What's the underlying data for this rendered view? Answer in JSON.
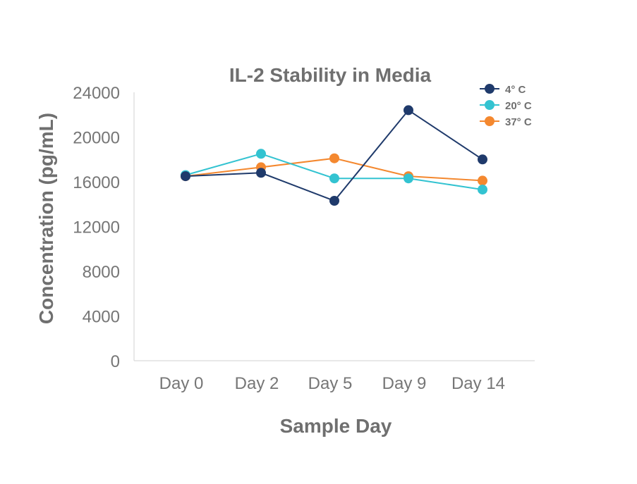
{
  "chart_data": {
    "type": "line",
    "title": "IL-2 Stability in Media",
    "xlabel": "Sample Day",
    "ylabel": "Concentration (pg/mL)",
    "categories": [
      "Day 0",
      "Day 2",
      "Day 5",
      "Day 9",
      "Day 14"
    ],
    "ylim": [
      0,
      24000
    ],
    "yticks": [
      "24000",
      "20000",
      "16000",
      "12000",
      "8000",
      "4000",
      "0"
    ],
    "ytick_values": [
      24000,
      20000,
      16000,
      12000,
      8000,
      4000,
      0
    ],
    "grid": false,
    "legend_position": "top-right",
    "series": [
      {
        "name": "4° C",
        "color": "#1f3a6b",
        "values": [
          16500,
          16800,
          14300,
          22400,
          18000
        ]
      },
      {
        "name": "20° C",
        "color": "#33c3d1",
        "values": [
          16600,
          18500,
          16300,
          16300,
          15300
        ]
      },
      {
        "name": "37° C",
        "color": "#f4882f",
        "values": [
          16500,
          17300,
          18100,
          16500,
          16100
        ]
      }
    ]
  }
}
